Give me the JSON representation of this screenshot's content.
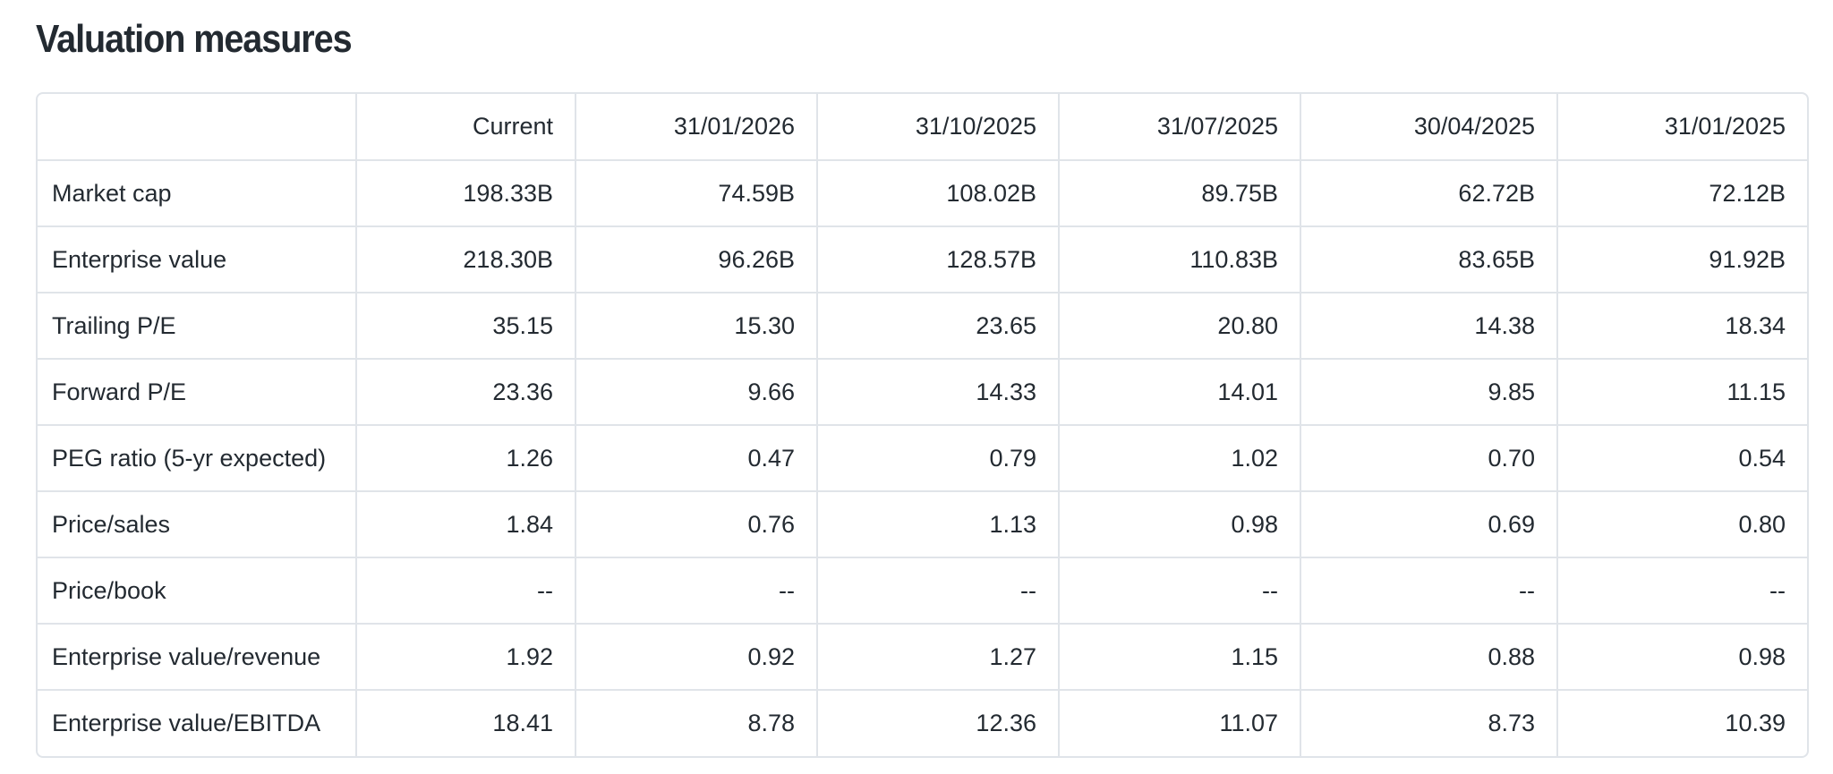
{
  "title": "Valuation measures",
  "columns": [
    "",
    "Current",
    "31/01/2026",
    "31/10/2025",
    "31/07/2025",
    "30/04/2025",
    "31/01/2025"
  ],
  "rows": [
    {
      "label": "Market cap",
      "values": [
        "198.33B",
        "74.59B",
        "108.02B",
        "89.75B",
        "62.72B",
        "72.12B"
      ]
    },
    {
      "label": "Enterprise value",
      "values": [
        "218.30B",
        "96.26B",
        "128.57B",
        "110.83B",
        "83.65B",
        "91.92B"
      ]
    },
    {
      "label": "Trailing P/E",
      "values": [
        "35.15",
        "15.30",
        "23.65",
        "20.80",
        "14.38",
        "18.34"
      ]
    },
    {
      "label": "Forward P/E",
      "values": [
        "23.36",
        "9.66",
        "14.33",
        "14.01",
        "9.85",
        "11.15"
      ]
    },
    {
      "label": "PEG ratio (5-yr expected)",
      "values": [
        "1.26",
        "0.47",
        "0.79",
        "1.02",
        "0.70",
        "0.54"
      ]
    },
    {
      "label": "Price/sales",
      "values": [
        "1.84",
        "0.76",
        "1.13",
        "0.98",
        "0.69",
        "0.80"
      ]
    },
    {
      "label": "Price/book",
      "values": [
        "--",
        "--",
        "--",
        "--",
        "--",
        "--"
      ]
    },
    {
      "label": "Enterprise value/revenue",
      "values": [
        "1.92",
        "0.92",
        "1.27",
        "1.15",
        "0.88",
        "0.98"
      ]
    },
    {
      "label": "Enterprise value/EBITDA",
      "values": [
        "18.41",
        "8.78",
        "12.36",
        "11.07",
        "8.73",
        "10.39"
      ]
    }
  ]
}
